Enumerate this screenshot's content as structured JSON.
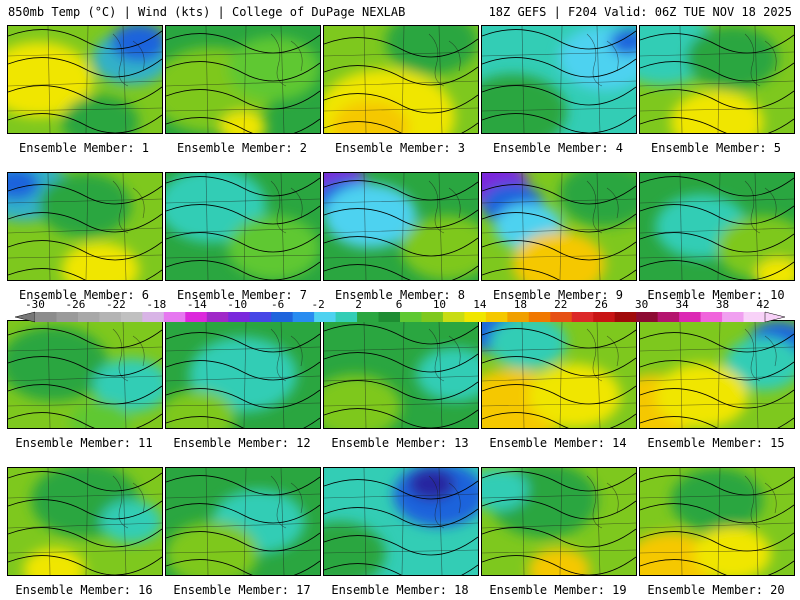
{
  "header": {
    "title_left": "850mb Temp (°C) | Wind (kts) | College of DuPage NEXLAB",
    "title_right": "18Z GEFS | F204 Valid: 06Z TUE NOV 18 2025"
  },
  "member_prefix": "Ensemble Member: ",
  "members": [
    {
      "label": "Ensemble Member: 1",
      "base": "#7ec81e",
      "blobs": [
        [
          "#f0e600",
          0.2,
          0.5,
          0.35
        ],
        [
          "#33b1c8",
          0.8,
          0.3,
          0.25
        ],
        [
          "#1e64dc",
          0.85,
          0.15,
          0.18
        ],
        [
          "#2aa640",
          0.6,
          0.9,
          0.25
        ]
      ]
    },
    {
      "label": "Ensemble Member: 2",
      "base": "#2aa640",
      "blobs": [
        [
          "#7ec81e",
          0.3,
          0.6,
          0.4
        ],
        [
          "#5fc832",
          0.7,
          0.4,
          0.3
        ],
        [
          "#f0e600",
          0.5,
          0.95,
          0.15
        ]
      ]
    },
    {
      "label": "Ensemble Member: 3",
      "base": "#7ec81e",
      "blobs": [
        [
          "#f0e600",
          0.4,
          0.85,
          0.45
        ],
        [
          "#2aa640",
          0.7,
          0.15,
          0.3
        ],
        [
          "#f5c800",
          0.3,
          0.95,
          0.25
        ]
      ]
    },
    {
      "label": "Ensemble Member: 4",
      "base": "#33cdb5",
      "blobs": [
        [
          "#2aa640",
          0.2,
          0.8,
          0.35
        ],
        [
          "#4ed2f0",
          0.8,
          0.3,
          0.3
        ],
        [
          "#1e64dc",
          0.95,
          0.15,
          0.12
        ]
      ]
    },
    {
      "label": "Ensemble Member: 5",
      "base": "#7ec81e",
      "blobs": [
        [
          "#33cdb5",
          0.15,
          0.2,
          0.35
        ],
        [
          "#2aa640",
          0.6,
          0.3,
          0.3
        ],
        [
          "#f0e600",
          0.5,
          0.9,
          0.3
        ]
      ]
    },
    {
      "label": "Ensemble Member: 6",
      "base": "#7ec81e",
      "blobs": [
        [
          "#33b1c8",
          0.1,
          0.15,
          0.3
        ],
        [
          "#1e64dc",
          0.05,
          0.1,
          0.15
        ],
        [
          "#2aa640",
          0.5,
          0.3,
          0.3
        ],
        [
          "#f0e600",
          0.6,
          0.9,
          0.25
        ]
      ]
    },
    {
      "label": "Ensemble Member: 7",
      "base": "#2aa640",
      "blobs": [
        [
          "#33cdb5",
          0.3,
          0.3,
          0.35
        ],
        [
          "#5fc832",
          0.7,
          0.7,
          0.3
        ]
      ]
    },
    {
      "label": "Ensemble Member: 8",
      "base": "#2aa640",
      "blobs": [
        [
          "#7a28dc",
          0.08,
          0.1,
          0.2
        ],
        [
          "#1e64dc",
          0.15,
          0.25,
          0.2
        ],
        [
          "#4ed2f0",
          0.3,
          0.4,
          0.3
        ],
        [
          "#7ec81e",
          0.8,
          0.7,
          0.3
        ]
      ]
    },
    {
      "label": "Ensemble Member: 9",
      "base": "#7ec81e",
      "blobs": [
        [
          "#7a28dc",
          0.08,
          0.1,
          0.22
        ],
        [
          "#1e64dc",
          0.2,
          0.3,
          0.2
        ],
        [
          "#4ed2f0",
          0.3,
          0.5,
          0.22
        ],
        [
          "#f5c800",
          0.5,
          0.85,
          0.3
        ],
        [
          "#2aa640",
          0.8,
          0.2,
          0.3
        ]
      ]
    },
    {
      "label": "Ensemble Member: 10",
      "base": "#2aa640",
      "blobs": [
        [
          "#33cdb5",
          0.4,
          0.5,
          0.3
        ],
        [
          "#7ec81e",
          0.8,
          0.7,
          0.3
        ],
        [
          "#f0e600",
          0.9,
          0.95,
          0.15
        ]
      ]
    },
    {
      "label": "Ensemble Member: 11",
      "base": "#7ec81e",
      "blobs": [
        [
          "#2aa640",
          0.3,
          0.4,
          0.35
        ],
        [
          "#33cdb5",
          0.8,
          0.6,
          0.25
        ],
        [
          "#5fc832",
          0.6,
          0.95,
          0.2
        ]
      ]
    },
    {
      "label": "Ensemble Member: 12",
      "base": "#2aa640",
      "blobs": [
        [
          "#33cdb5",
          0.5,
          0.5,
          0.35
        ],
        [
          "#7ec81e",
          0.2,
          0.9,
          0.25
        ]
      ]
    },
    {
      "label": "Ensemble Member: 13",
      "base": "#2aa640",
      "blobs": [
        [
          "#33cdb5",
          0.85,
          0.5,
          0.25
        ],
        [
          "#7ec81e",
          0.2,
          0.8,
          0.3
        ]
      ]
    },
    {
      "label": "Ensemble Member: 14",
      "base": "#7ec81e",
      "blobs": [
        [
          "#1e64dc",
          0.1,
          0.1,
          0.2
        ],
        [
          "#33cdb5",
          0.3,
          0.2,
          0.25
        ],
        [
          "#f5c800",
          0.2,
          0.8,
          0.35
        ],
        [
          "#f0e600",
          0.6,
          0.7,
          0.3
        ]
      ]
    },
    {
      "label": "Ensemble Member: 15",
      "base": "#7ec81e",
      "blobs": [
        [
          "#1e64dc",
          0.9,
          0.2,
          0.2
        ],
        [
          "#33cdb5",
          0.8,
          0.4,
          0.25
        ],
        [
          "#f5c800",
          0.1,
          0.8,
          0.3
        ],
        [
          "#f0e600",
          0.4,
          0.7,
          0.3
        ]
      ]
    },
    {
      "label": "Ensemble Member: 16",
      "base": "#7ec81e",
      "blobs": [
        [
          "#2aa640",
          0.5,
          0.3,
          0.35
        ],
        [
          "#33cdb5",
          0.8,
          0.5,
          0.2
        ],
        [
          "#f0e600",
          0.3,
          0.95,
          0.2
        ]
      ]
    },
    {
      "label": "Ensemble Member: 17",
      "base": "#2aa640",
      "blobs": [
        [
          "#33cdb5",
          0.6,
          0.5,
          0.3
        ],
        [
          "#7ec81e",
          0.3,
          0.8,
          0.3
        ]
      ]
    },
    {
      "label": "Ensemble Member: 18",
      "base": "#33cdb5",
      "blobs": [
        [
          "#1e64dc",
          0.75,
          0.25,
          0.3
        ],
        [
          "#2828a0",
          0.7,
          0.15,
          0.15
        ],
        [
          "#2aa640",
          0.1,
          0.8,
          0.3
        ]
      ]
    },
    {
      "label": "Ensemble Member: 19",
      "base": "#7ec81e",
      "blobs": [
        [
          "#2aa640",
          0.4,
          0.3,
          0.35
        ],
        [
          "#33cdb5",
          0.1,
          0.2,
          0.2
        ],
        [
          "#f5c800",
          0.5,
          0.95,
          0.2
        ]
      ]
    },
    {
      "label": "Ensemble Member: 20",
      "base": "#7ec81e",
      "blobs": [
        [
          "#2aa640",
          0.5,
          0.3,
          0.3
        ],
        [
          "#f5c800",
          0.2,
          0.9,
          0.3
        ],
        [
          "#f0e600",
          0.6,
          0.8,
          0.25
        ]
      ]
    }
  ],
  "colorbar": {
    "ticks": [
      "-30",
      "-26",
      "-22",
      "-18",
      "-14",
      "-10",
      "-6",
      "-2",
      "2",
      "6",
      "10",
      "14",
      "18",
      "22",
      "26",
      "30",
      "34",
      "38",
      "42"
    ],
    "colors": [
      "#8c8c8c",
      "#9a9a9a",
      "#a8a8a8",
      "#b4b4b4",
      "#c0c0c0",
      "#d8b4e6",
      "#e678f0",
      "#dc28dc",
      "#a028c8",
      "#7a28dc",
      "#4646e6",
      "#1e64dc",
      "#288cf0",
      "#4ed2f0",
      "#33cdb5",
      "#2aa640",
      "#1e8c32",
      "#5fc832",
      "#7ec81e",
      "#c8dc14",
      "#f0e600",
      "#f5c800",
      "#f0a000",
      "#f07800",
      "#e65014",
      "#dc2828",
      "#c81414",
      "#a00a0a",
      "#8c0a32",
      "#b4146e",
      "#dc28b4",
      "#f064dc",
      "#f0a0f0",
      "#f8d2f8"
    ]
  }
}
